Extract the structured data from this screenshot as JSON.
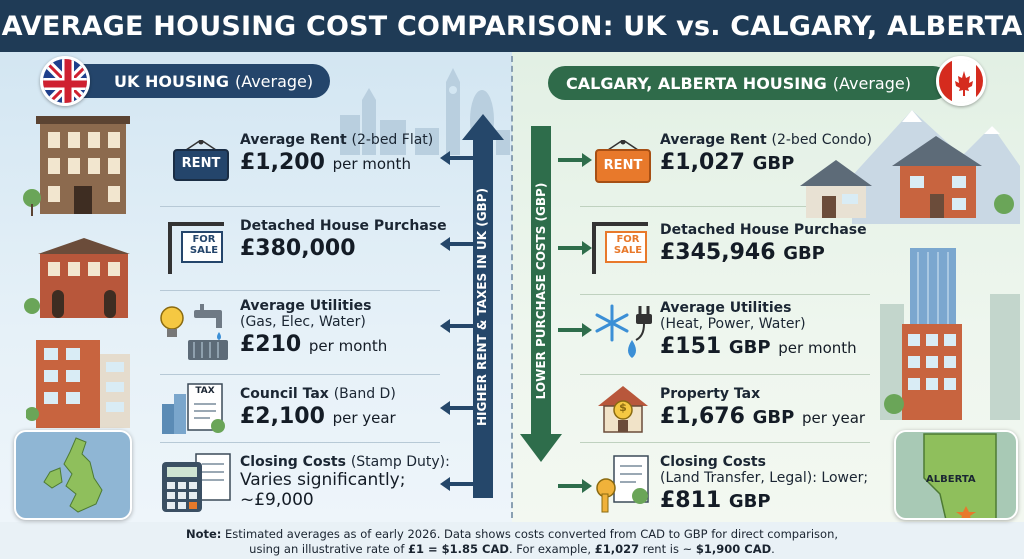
{
  "title": "AVERAGE HOUSING COST COMPARISON: UK vs. CALGARY, ALBERTA",
  "uk": {
    "heading": "UK HOUSING",
    "heading_suffix": "(Average)",
    "rent": {
      "label": "Average Rent",
      "label_suffix": "(2-bed Flat)",
      "value": "£1,200",
      "unit": "per month",
      "sign": "RENT"
    },
    "house": {
      "label": "Detached House Purchase",
      "value": "£380,000",
      "sign_line1": "FOR",
      "sign_line2": "SALE"
    },
    "utilities": {
      "label": "Average Utilities",
      "sub": "(Gas, Elec, Water)",
      "value": "£210",
      "unit": "per month"
    },
    "tax": {
      "label": "Council Tax",
      "label_suffix": "(Band D)",
      "value": "£2,100",
      "unit": "per year",
      "doc": "TAX"
    },
    "closing": {
      "label": "Closing Costs",
      "label_suffix": "(Stamp Duty):",
      "line2": "Varies significantly;",
      "value": "~£9,000"
    },
    "arrow_text": "HIGHER RENT & TAXES IN UK (GBP)"
  },
  "ca": {
    "heading": "CALGARY, ALBERTA HOUSING",
    "heading_suffix": "(Average)",
    "rent": {
      "label": "Average Rent",
      "label_suffix": "(2-bed Condo)",
      "value": "£1,027",
      "currency": "GBP",
      "sign": "RENT"
    },
    "house": {
      "label": "Detached House Purchase",
      "value": "£345,946",
      "currency": "GBP",
      "sign_line1": "FOR",
      "sign_line2": "SALE"
    },
    "utilities": {
      "label": "Average Utilities",
      "sub": "(Heat, Power, Water)",
      "value": "£151",
      "currency": "GBP",
      "unit": "per month"
    },
    "tax": {
      "label": "Property Tax",
      "value": "£1,676",
      "currency": "GBP",
      "unit": "per year"
    },
    "closing": {
      "label": "Closing Costs",
      "sub": "(Land Transfer, Legal): Lower;",
      "value": "£811",
      "currency": "GBP"
    },
    "arrow_text": "LOWER PURCHASE COSTS (GBP)",
    "map_label": "ALBERTA"
  },
  "note": {
    "bold": "Note:",
    "line1": "Estimated averages as of early 2026. Data shows costs converted from CAD to GBP for direct comparison,",
    "line2_a": "using an illustrative rate of",
    "rate": "£1 = $1.85 CAD",
    "line2_b": ". For example,",
    "example": "£1,027",
    "line2_c": "rent is ~",
    "example_cad": "$1,900 CAD",
    "line2_d": "."
  },
  "colors": {
    "title_bg": "#1f3b56",
    "uk_pill": "#24456b",
    "ca_pill": "#2f6b4a",
    "uk_arrow": "#25476a",
    "ca_arrow": "#2e6d4b",
    "ca_sign": "#e8792b"
  }
}
